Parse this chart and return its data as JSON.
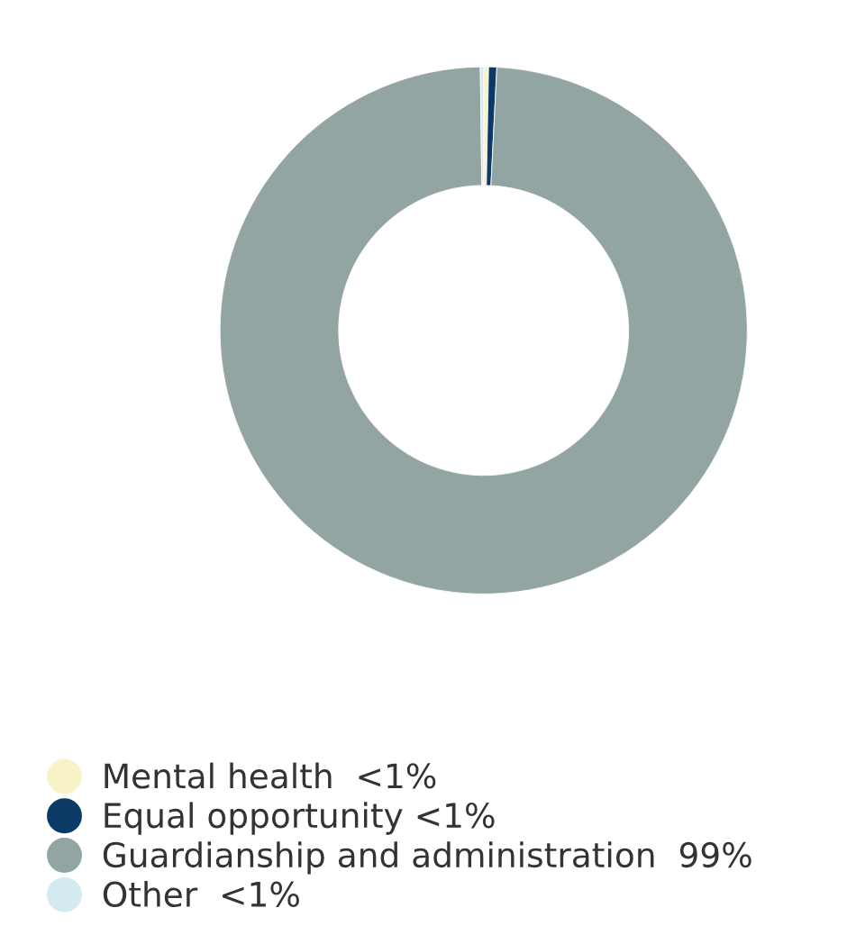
{
  "chart_data": {
    "type": "donut",
    "categories": [
      "Mental health  <1%",
      "Equal opportunity <1%",
      "Guardianship and administration  99%",
      "Other  <1%"
    ],
    "values": [
      0.3,
      0.5,
      99,
      0.2
    ],
    "colors": [
      "#f7f3c6",
      "#0b3a66",
      "#93a5a2",
      "#d3eaf0"
    ],
    "legend": "bottom"
  }
}
